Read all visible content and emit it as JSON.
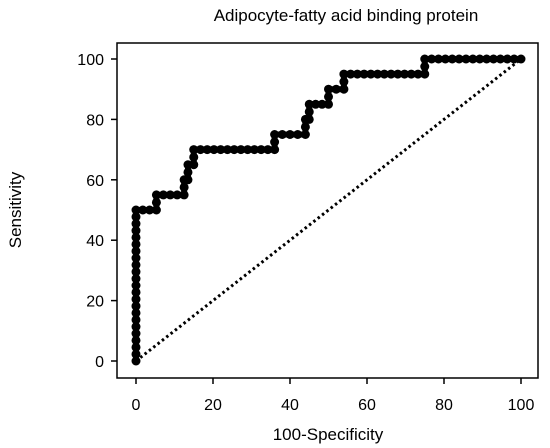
{
  "chart_data": {
    "type": "line",
    "title": "Adipocyte-fatty acid binding protein",
    "xlabel": "100-Specificity",
    "ylabel": "Sensitivity",
    "xlim": [
      0,
      100
    ],
    "ylim": [
      0,
      100
    ],
    "xticks": [
      0,
      20,
      40,
      60,
      80,
      100
    ],
    "yticks": [
      0,
      20,
      40,
      60,
      80,
      100
    ],
    "grid": false,
    "line_color": "#000000",
    "series": [
      {
        "style": "solid-with-markers",
        "x": [
          0,
          0,
          5.3,
          5.3,
          12.5,
          12.5,
          13.5,
          13.5,
          15,
          15,
          36,
          36,
          44,
          44,
          45,
          45,
          50,
          50,
          54,
          54,
          75,
          75,
          100
        ],
        "y": [
          0,
          50,
          50,
          55,
          55,
          60,
          60,
          65,
          65,
          70,
          70,
          75,
          75,
          80,
          80,
          85,
          85,
          90,
          90,
          95,
          95,
          100,
          100
        ]
      },
      {
        "style": "dotted-reference",
        "x": [
          0,
          100
        ],
        "y": [
          0,
          100
        ]
      }
    ]
  }
}
